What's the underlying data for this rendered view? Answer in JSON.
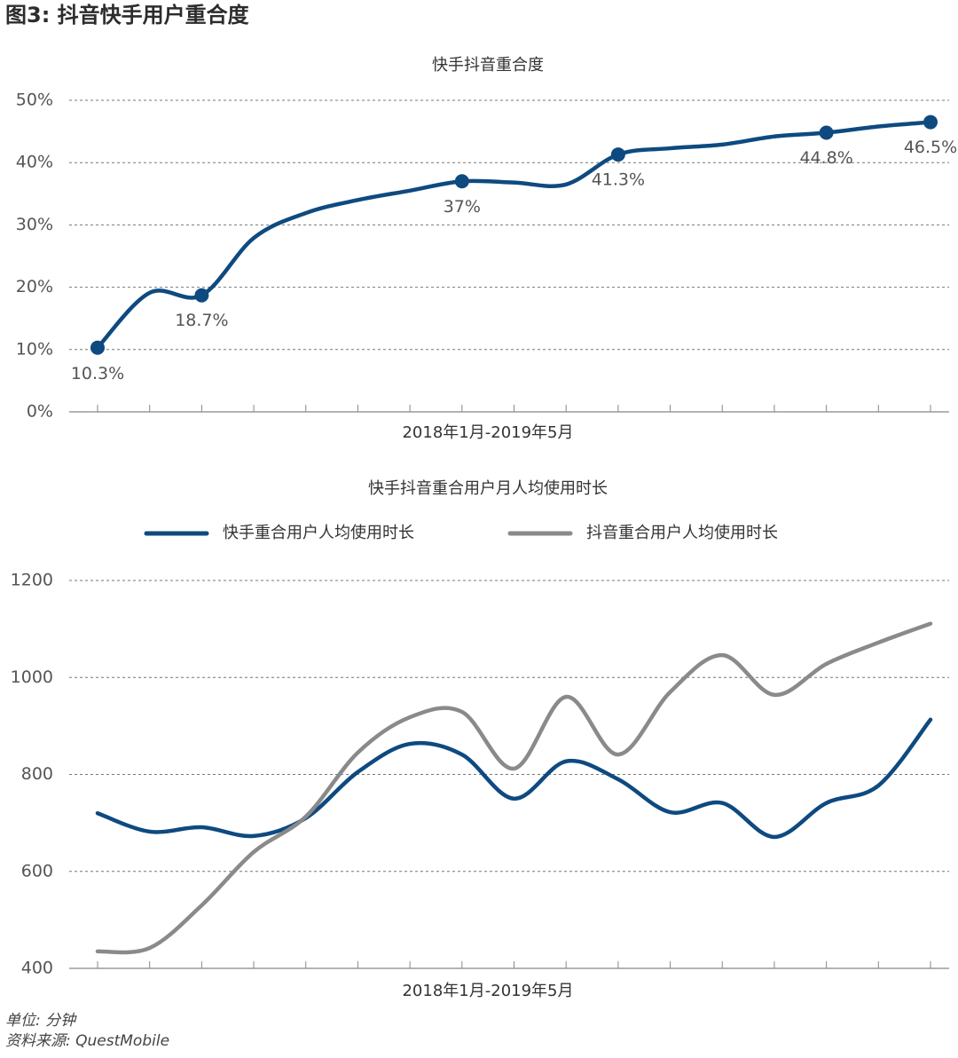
{
  "header": {
    "title": "图3: 抖音快手用户重合度"
  },
  "chart_data": [
    {
      "type": "line",
      "title": "快手抖音重合度",
      "xlabel": "2018年1月-2019年5月",
      "categories": [
        null,
        null,
        null,
        null,
        null,
        null,
        null,
        null,
        null,
        null,
        null,
        null,
        null,
        null,
        null,
        null,
        null
      ],
      "series": [
        {
          "name": null,
          "color": "#0e4a80",
          "values": [
            10.3,
            19.1,
            18.7,
            27.9,
            31.9,
            34.0,
            35.5,
            37,
            36.8,
            36.5,
            41.3,
            42.3,
            42.9,
            44.2,
            44.8,
            45.8,
            46.5
          ],
          "value_labels": [
            "10.3%",
            null,
            "18.7%",
            null,
            null,
            null,
            null,
            "37%",
            null,
            null,
            "41.3%",
            null,
            null,
            null,
            "44.8%",
            null,
            "46.5%"
          ]
        }
      ],
      "ylim": [
        0,
        50
      ],
      "yticks": [
        {
          "value": 0,
          "label": "0%"
        },
        {
          "value": 10,
          "label": "10%"
        },
        {
          "value": 20,
          "label": "20%"
        },
        {
          "value": 30,
          "label": "30%"
        },
        {
          "value": 40,
          "label": "40%"
        },
        {
          "value": 50,
          "label": "50%"
        }
      ],
      "grid": true
    },
    {
      "type": "line",
      "title": "快手抖音重合用户月人均使用时长",
      "xlabel": "2018年1月-2019年5月",
      "categories": [
        null,
        null,
        null,
        null,
        null,
        null,
        null,
        null,
        null,
        null,
        null,
        null,
        null,
        null,
        null,
        null,
        null
      ],
      "series": [
        {
          "name": "快手重合用户人均使用时长",
          "color": "#0e4a80",
          "values": [
            720,
            682,
            691,
            673,
            710,
            805,
            863,
            841,
            750,
            827,
            790,
            722,
            741,
            671,
            741,
            777,
            913
          ]
        },
        {
          "name": "抖音重合用户人均使用时长",
          "color": "#8a8a8a",
          "values": [
            435,
            442,
            530,
            640,
            713,
            845,
            918,
            929,
            812,
            960,
            841,
            970,
            1046,
            964,
            1028,
            1072,
            1111
          ]
        }
      ],
      "ylim": [
        400,
        1200
      ],
      "yticks": [
        400,
        600,
        800,
        1000,
        1200
      ],
      "grid": true,
      "legend": "top"
    }
  ],
  "footer": {
    "unit": "单位: 分钟",
    "source": "资料来源: QuestMobile"
  }
}
